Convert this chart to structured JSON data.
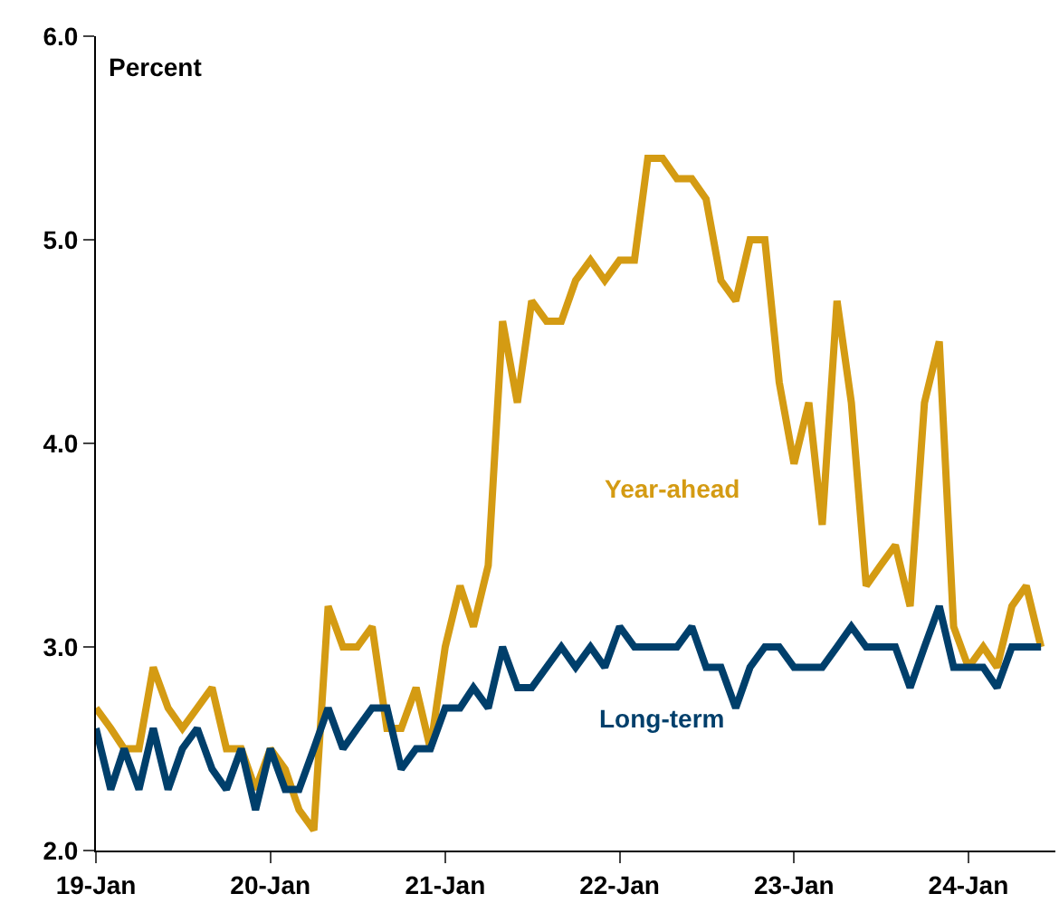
{
  "chart_data": {
    "type": "line",
    "ylabel": "Percent",
    "x": [
      "2019-01",
      "2019-02",
      "2019-03",
      "2019-04",
      "2019-05",
      "2019-06",
      "2019-07",
      "2019-08",
      "2019-09",
      "2019-10",
      "2019-11",
      "2019-12",
      "2020-01",
      "2020-02",
      "2020-03",
      "2020-04",
      "2020-05",
      "2020-06",
      "2020-07",
      "2020-08",
      "2020-09",
      "2020-10",
      "2020-11",
      "2020-12",
      "2021-01",
      "2021-02",
      "2021-03",
      "2021-04",
      "2021-05",
      "2021-06",
      "2021-07",
      "2021-08",
      "2021-09",
      "2021-10",
      "2021-11",
      "2021-12",
      "2022-01",
      "2022-02",
      "2022-03",
      "2022-04",
      "2022-05",
      "2022-06",
      "2022-07",
      "2022-08",
      "2022-09",
      "2022-10",
      "2022-11",
      "2022-12",
      "2023-01",
      "2023-02",
      "2023-03",
      "2023-04",
      "2023-05",
      "2023-06",
      "2023-07",
      "2023-08",
      "2023-09",
      "2023-10",
      "2023-11",
      "2023-12",
      "2024-01",
      "2024-02",
      "2024-03",
      "2024-04",
      "2024-05",
      "2024-06"
    ],
    "series": [
      {
        "name": "Year-ahead",
        "color": "#d49b13",
        "values": [
          2.7,
          2.6,
          2.5,
          2.5,
          2.9,
          2.7,
          2.6,
          2.7,
          2.8,
          2.5,
          2.5,
          2.3,
          2.5,
          2.4,
          2.2,
          2.1,
          3.2,
          3.0,
          3.0,
          3.1,
          2.6,
          2.6,
          2.8,
          2.5,
          3.0,
          3.3,
          3.1,
          3.4,
          4.6,
          4.2,
          4.7,
          4.6,
          4.6,
          4.8,
          4.9,
          4.8,
          4.9,
          4.9,
          5.4,
          5.4,
          5.3,
          5.3,
          5.2,
          4.8,
          4.7,
          5.0,
          5.0,
          4.3,
          3.9,
          4.2,
          3.6,
          4.7,
          4.2,
          3.3,
          3.4,
          3.5,
          3.2,
          4.2,
          4.5,
          3.1,
          2.9,
          3.0,
          2.9,
          3.2,
          3.3,
          3.0
        ]
      },
      {
        "name": "Long-term",
        "color": "#003f6b",
        "values": [
          2.6,
          2.3,
          2.5,
          2.3,
          2.6,
          2.3,
          2.5,
          2.6,
          2.4,
          2.3,
          2.5,
          2.2,
          2.5,
          2.3,
          2.3,
          2.5,
          2.7,
          2.5,
          2.6,
          2.7,
          2.7,
          2.4,
          2.5,
          2.5,
          2.7,
          2.7,
          2.8,
          2.7,
          3.0,
          2.8,
          2.8,
          2.9,
          3.0,
          2.9,
          3.0,
          2.9,
          3.1,
          3.0,
          3.0,
          3.0,
          3.0,
          3.1,
          2.9,
          2.9,
          2.7,
          2.9,
          3.0,
          3.0,
          2.9,
          2.9,
          2.9,
          3.0,
          3.1,
          3.0,
          3.0,
          3.0,
          2.8,
          3.0,
          3.2,
          2.9,
          2.9,
          2.9,
          2.8,
          3.0,
          3.0,
          3.0
        ]
      }
    ],
    "xlim": [
      "2019-01",
      "2024-07"
    ],
    "xticks": [
      {
        "value": "2019-01",
        "label": "19-Jan"
      },
      {
        "value": "2020-01",
        "label": "20-Jan"
      },
      {
        "value": "2021-01",
        "label": "21-Jan"
      },
      {
        "value": "2022-01",
        "label": "22-Jan"
      },
      {
        "value": "2023-01",
        "label": "23-Jan"
      },
      {
        "value": "2024-01",
        "label": "24-Jan"
      }
    ],
    "ylim": [
      2,
      6
    ],
    "yticks": [
      {
        "value": 2,
        "label": "2.0"
      },
      {
        "value": 3,
        "label": "3.0"
      },
      {
        "value": 4,
        "label": "4.0"
      },
      {
        "value": 5,
        "label": "5.0"
      },
      {
        "value": 6,
        "label": "6.0"
      }
    ],
    "legend": false,
    "marker": "none",
    "line_style": "solid"
  }
}
